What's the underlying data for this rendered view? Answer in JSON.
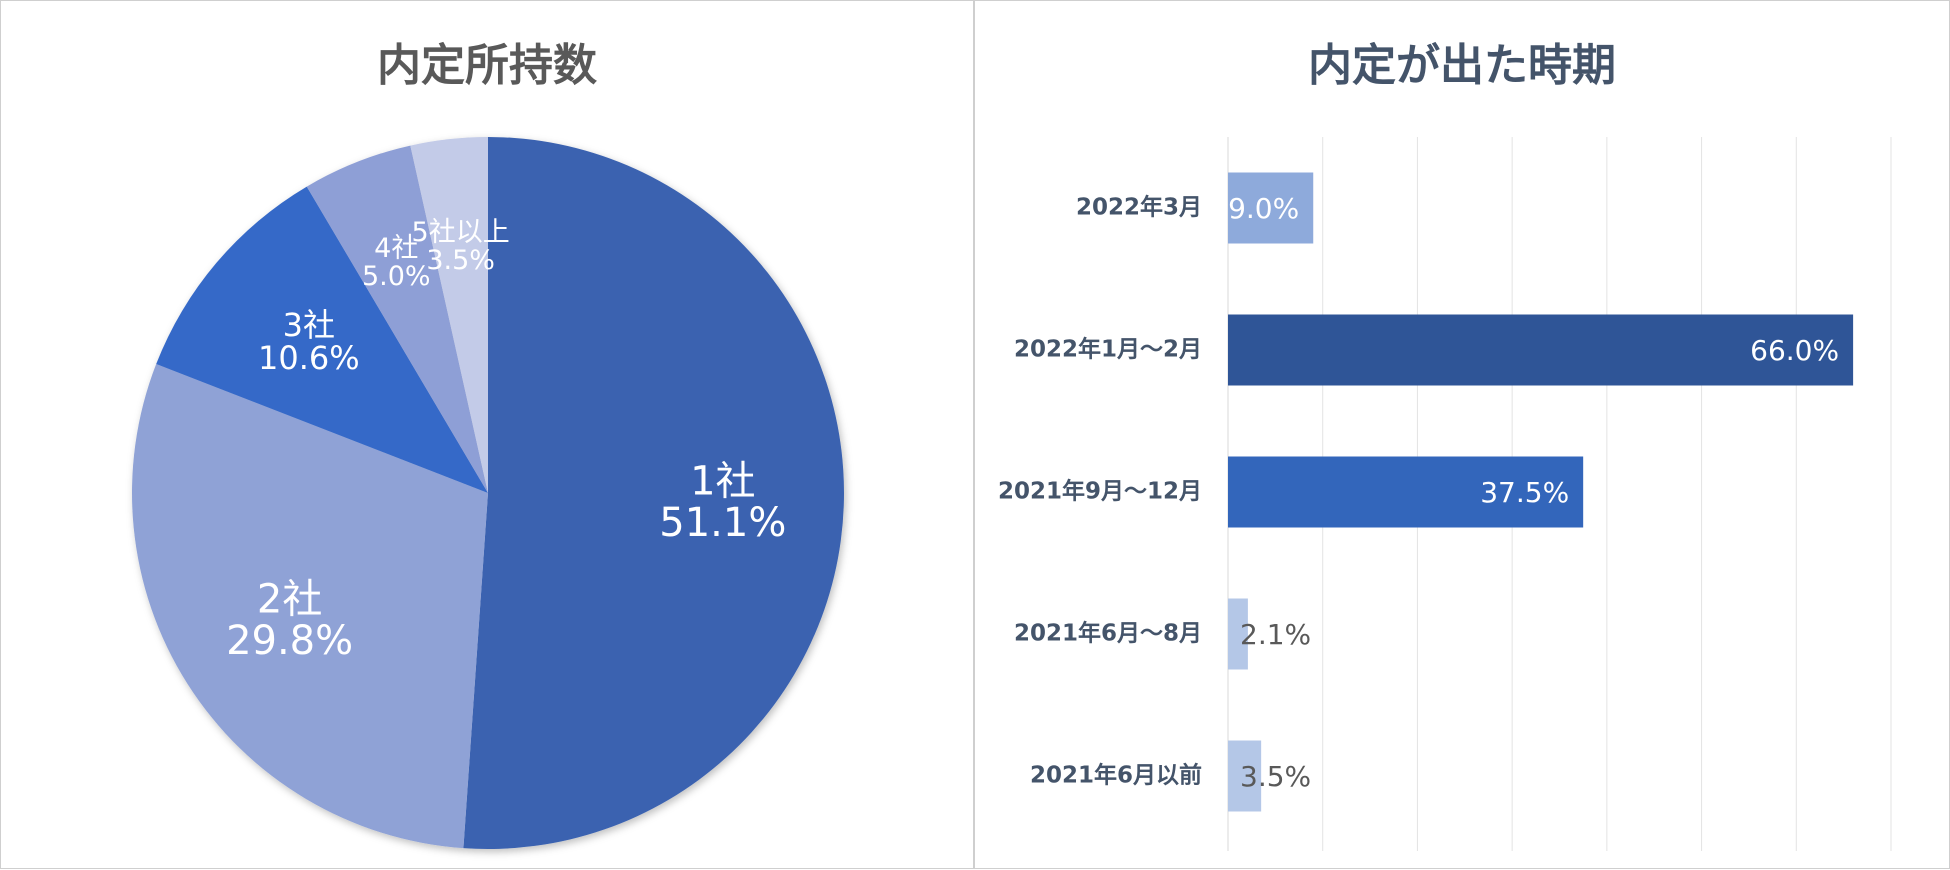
{
  "charts": {
    "pie_title": "内定所持数",
    "bar_title": "内定が出た時期"
  },
  "chart_data": [
    {
      "type": "pie",
      "title": "内定所持数",
      "labels": [
        "1社",
        "2社",
        "3社",
        "4社",
        "5社以上"
      ],
      "values": [
        51.1,
        29.8,
        10.6,
        5.0,
        3.5
      ],
      "value_labels": [
        "51.1%",
        "29.8%",
        "10.6%",
        "5.0%",
        "3.5%"
      ],
      "colors": [
        "#3a62b0",
        "#8fa2d6",
        "#3669c8",
        "#8e9fd6",
        "#c3cbe8"
      ],
      "start": "12 o'clock",
      "direction": "clockwise"
    },
    {
      "type": "bar",
      "orientation": "horizontal",
      "title": "内定が出た時期",
      "categories": [
        "2022年3月",
        "2022年1月～2月",
        "2021年9月～12月",
        "2021年6月～8月",
        "2021年6月以前"
      ],
      "values": [
        9.0,
        66.0,
        37.5,
        2.1,
        3.5
      ],
      "value_labels": [
        "9.0%",
        "66.0%",
        "37.5%",
        "2.1%",
        "3.5%"
      ],
      "colors": [
        "#8eaadb",
        "#2f5597",
        "#3366bb",
        "#b4c7e7",
        "#b4c7e7"
      ],
      "xlim": [
        0,
        70
      ],
      "grid": true
    }
  ]
}
